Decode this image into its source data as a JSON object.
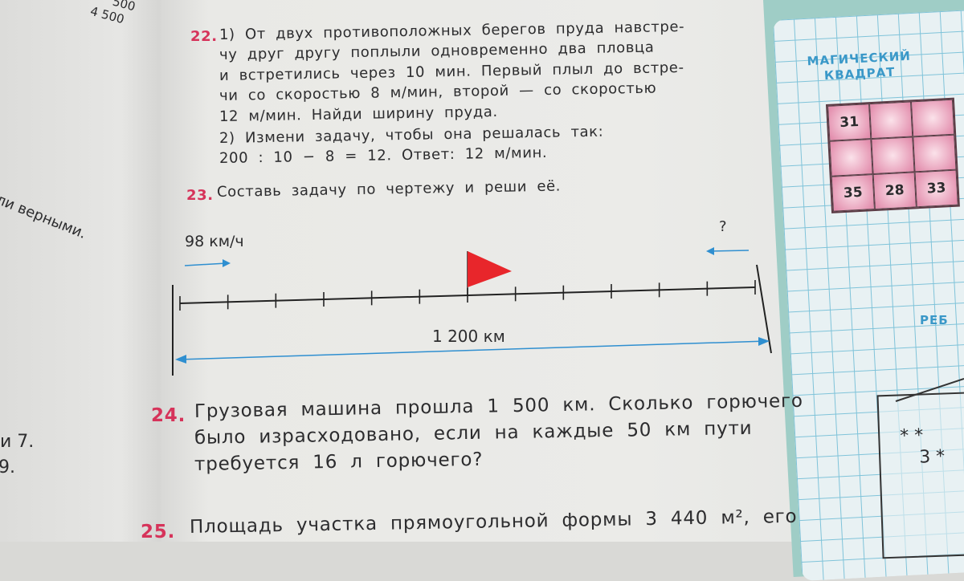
{
  "left_page": {
    "top_numbers": [
      "500",
      "4 500"
    ],
    "fragment_1": "ли   верными.",
    "fragment_2": "и  7.",
    "fragment_3": "9."
  },
  "problem_22": {
    "number": "22.",
    "part1_lines": [
      "1) От двух противоположных берегов пруда навстре-",
      "чу друг другу поплыли одновременно два пловца",
      "и встретились через 10 мин. Первый плыл до встре-",
      "чи со скоростью 8 м/мин, второй — со скоростью",
      "12 м/мин. Найди ширину пруда."
    ],
    "part2_lines": [
      "2) Измени задачу, чтобы она решалась так:",
      "200 : 10 − 8 = 12. Ответ: 12 м/мин."
    ]
  },
  "problem_23": {
    "number": "23.",
    "text": "Составь задачу по чертежу и реши её.",
    "diagram": {
      "speed_label": "98 км/ч",
      "unknown_label": "?",
      "distance_label": "1 200 км",
      "segments": 12,
      "flag_at_segment": 6,
      "flag_color": "#e8262b",
      "arrow_color": "#2f8fd0"
    }
  },
  "problem_24": {
    "number": "24.",
    "lines": [
      "Грузовая машина прошла 1 500 км. Сколько горючего",
      "было израсходовано, если на каждые 50 км пути",
      "требуется 16 л горючего?"
    ]
  },
  "problem_25": {
    "number": "25.",
    "text": "Площадь участка прямоугольной формы 3 440 м², его"
  },
  "sidebar": {
    "magic_title_1": "МАГИЧЕСКИЙ",
    "magic_title_2": "КВАДРАТ",
    "magic_square": [
      "31",
      "",
      "",
      "",
      "",
      "",
      "35",
      "28",
      "33"
    ],
    "rebus_title": "РЕБ",
    "rebus_row1": "* *",
    "rebus_row2": "3 *"
  }
}
